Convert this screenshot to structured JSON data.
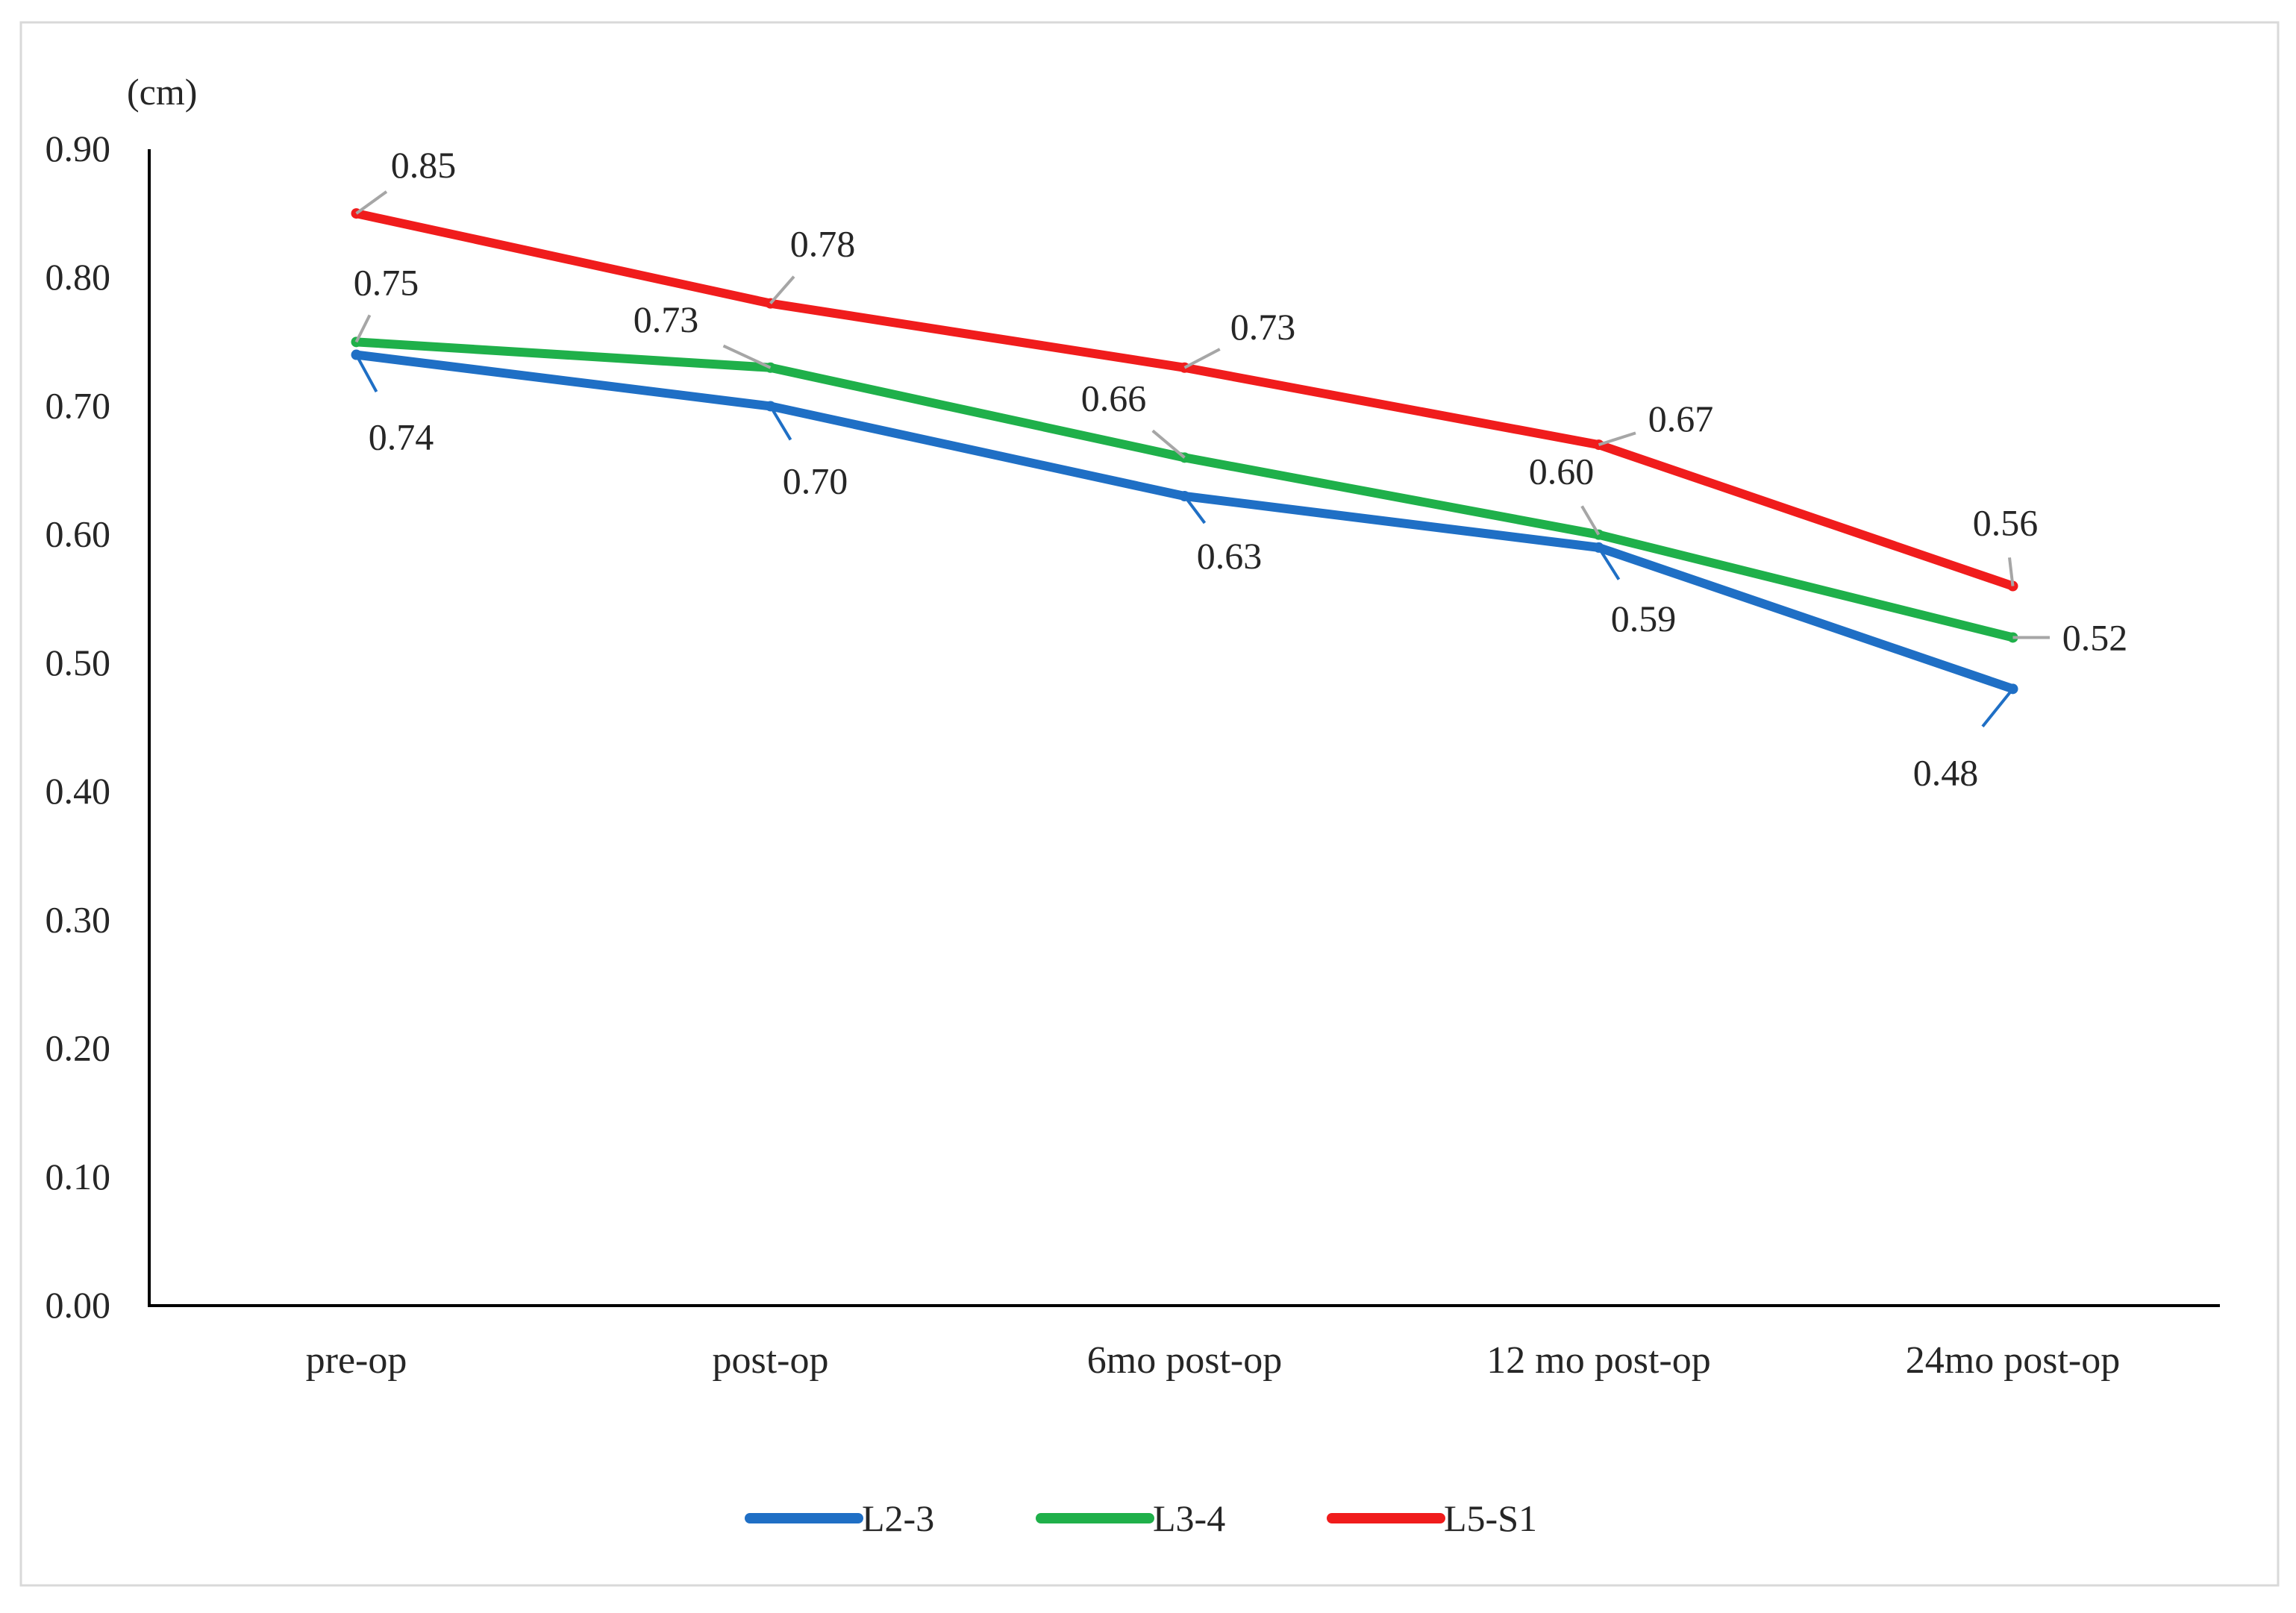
{
  "chart_data": {
    "type": "line",
    "title": "",
    "xlabel": "",
    "ylabel": "",
    "unit_label": "(cm)",
    "categories": [
      "pre-op",
      "post-op",
      "6mo post-op",
      "12 mo post-op",
      "24mo post-op"
    ],
    "ylim": [
      0.0,
      0.9
    ],
    "yticks": [
      "0.00",
      "0.10",
      "0.20",
      "0.30",
      "0.40",
      "0.50",
      "0.60",
      "0.70",
      "0.80",
      "0.90"
    ],
    "grid": false,
    "legend_position": "bottom-center",
    "series": [
      {
        "name": "L2-3",
        "color": "#1f6fc5",
        "values": [
          0.74,
          0.7,
          0.63,
          0.59,
          0.48
        ],
        "labels": [
          "0.74",
          "0.70",
          "0.63",
          "0.59",
          "0.48"
        ]
      },
      {
        "name": "L3-4",
        "color": "#1fb04a",
        "values": [
          0.75,
          0.73,
          0.66,
          0.6,
          0.52
        ],
        "labels": [
          "0.75",
          "0.73",
          "0.66",
          "0.60",
          "0.52"
        ]
      },
      {
        "name": "L5-S1",
        "color": "#f01c1c",
        "values": [
          0.85,
          0.78,
          0.73,
          0.67,
          0.56
        ],
        "labels": [
          "0.85",
          "0.78",
          "0.73",
          "0.67",
          "0.56"
        ]
      }
    ]
  }
}
